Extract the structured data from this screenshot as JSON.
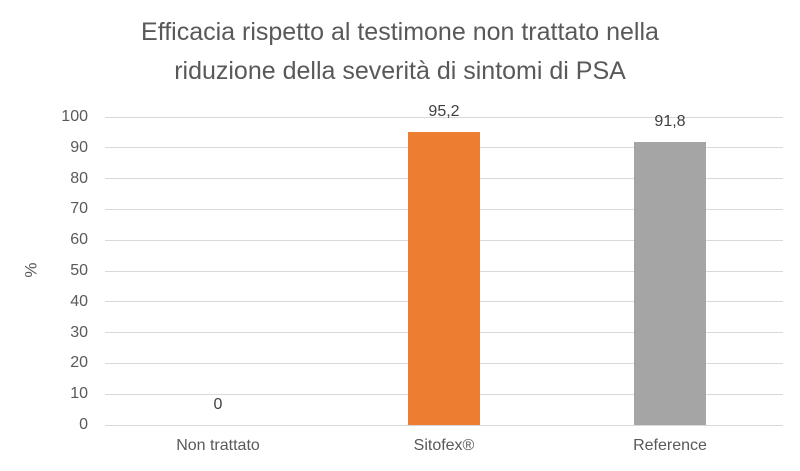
{
  "chart": {
    "title_lines": [
      "Efficacia rispetto al testimone non trattato nella",
      "riduzione della severità di sintomi di PSA"
    ],
    "y_axis_label": "%"
  },
  "chart_data": {
    "type": "bar",
    "title": "Efficacia rispetto al testimone non trattato nella riduzione della severità di sintomi di PSA",
    "categories": [
      "Non trattato",
      "Sitofex®",
      "Reference"
    ],
    "values": [
      0,
      95.2,
      91.8
    ],
    "value_labels": [
      "0",
      "95,2",
      "91,8"
    ],
    "colors": [
      null,
      "#ED7D31",
      "#A5A5A5"
    ],
    "xlabel": "",
    "ylabel": "%",
    "ylim": [
      0,
      100
    ],
    "yticks": [
      0,
      10,
      20,
      30,
      40,
      50,
      60,
      70,
      80,
      90,
      100
    ],
    "grid": true,
    "legend_position": "none",
    "gridline_color": "#D9D9D9",
    "axis_text_color": "#595959",
    "data_label_color": "#404040"
  }
}
